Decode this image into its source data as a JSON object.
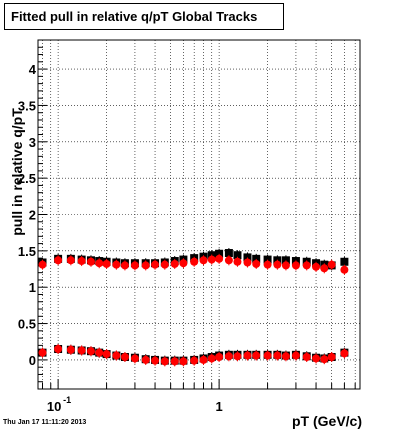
{
  "chart_data": {
    "type": "scatter",
    "title": "Fitted pull in relative q/pT  Global Tracks",
    "xlabel": "pT (GeV/c)",
    "ylabel": "pull in relative q/pT",
    "x_scale": "log",
    "xlim": [
      0.075,
      7.5
    ],
    "ylim": [
      -0.4,
      4.4
    ],
    "y_ticks": [
      "0",
      "0.5",
      "1",
      "1.5",
      "2",
      "2.5",
      "3",
      "3.5",
      "4"
    ],
    "x_tick_labels": [
      {
        "value": 0.1,
        "base": "10",
        "exp": "-1"
      },
      {
        "value": 1,
        "base": "1",
        "exp": ""
      }
    ],
    "grid": true,
    "series": [
      {
        "color": "#000000",
        "marker": "square",
        "x": [
          0.08,
          0.1,
          0.12,
          0.14,
          0.16,
          0.18,
          0.2,
          0.23,
          0.26,
          0.3,
          0.35,
          0.4,
          0.46,
          0.53,
          0.6,
          0.7,
          0.8,
          0.9,
          1.0,
          1.15,
          1.3,
          1.5,
          1.7,
          2.0,
          2.3,
          2.6,
          3.0,
          3.5,
          4.0,
          4.5,
          5.0,
          6.0
        ],
        "y": [
          1.34,
          1.39,
          1.39,
          1.38,
          1.37,
          1.36,
          1.35,
          1.34,
          1.33,
          1.33,
          1.33,
          1.33,
          1.34,
          1.36,
          1.38,
          1.4,
          1.42,
          1.44,
          1.46,
          1.47,
          1.44,
          1.41,
          1.39,
          1.38,
          1.37,
          1.37,
          1.36,
          1.35,
          1.33,
          1.31,
          1.3,
          1.35
        ]
      },
      {
        "color": "#ff0000",
        "marker": "circle",
        "x": [
          0.08,
          0.1,
          0.12,
          0.14,
          0.16,
          0.18,
          0.2,
          0.23,
          0.26,
          0.3,
          0.35,
          0.4,
          0.46,
          0.53,
          0.6,
          0.7,
          0.8,
          0.9,
          1.0,
          1.15,
          1.3,
          1.5,
          1.7,
          2.0,
          2.3,
          2.6,
          3.0,
          3.5,
          4.0,
          4.5,
          5.0,
          6.0
        ],
        "y": [
          1.31,
          1.37,
          1.37,
          1.36,
          1.35,
          1.33,
          1.32,
          1.31,
          1.3,
          1.3,
          1.3,
          1.31,
          1.31,
          1.32,
          1.33,
          1.35,
          1.37,
          1.38,
          1.39,
          1.37,
          1.35,
          1.34,
          1.32,
          1.31,
          1.31,
          1.3,
          1.3,
          1.3,
          1.28,
          1.26,
          1.31,
          1.24
        ]
      },
      {
        "color": "#000000",
        "marker": "square",
        "x": [
          0.08,
          0.1,
          0.12,
          0.14,
          0.16,
          0.18,
          0.2,
          0.23,
          0.26,
          0.3,
          0.35,
          0.4,
          0.46,
          0.53,
          0.6,
          0.7,
          0.8,
          0.9,
          1.0,
          1.15,
          1.3,
          1.5,
          1.7,
          2.0,
          2.3,
          2.6,
          3.0,
          3.5,
          4.0,
          4.5,
          5.0,
          6.0
        ],
        "y": [
          0.1,
          0.15,
          0.14,
          0.13,
          0.12,
          0.1,
          0.08,
          0.06,
          0.04,
          0.03,
          0.01,
          0.0,
          -0.01,
          -0.01,
          -0.01,
          0.0,
          0.02,
          0.04,
          0.06,
          0.07,
          0.07,
          0.07,
          0.07,
          0.07,
          0.07,
          0.06,
          0.07,
          0.05,
          0.03,
          0.02,
          0.04,
          0.1
        ]
      },
      {
        "color": "#ff0000",
        "marker": "circle",
        "x": [
          0.08,
          0.1,
          0.12,
          0.14,
          0.16,
          0.18,
          0.2,
          0.23,
          0.26,
          0.3,
          0.35,
          0.4,
          0.46,
          0.53,
          0.6,
          0.7,
          0.8,
          0.9,
          1.0,
          1.15,
          1.3,
          1.5,
          1.7,
          2.0,
          2.3,
          2.6,
          3.0,
          3.5,
          4.0,
          4.5,
          5.0,
          6.0
        ],
        "y": [
          0.1,
          0.15,
          0.14,
          0.13,
          0.12,
          0.1,
          0.08,
          0.06,
          0.04,
          0.02,
          0.0,
          -0.01,
          -0.02,
          -0.02,
          -0.02,
          -0.01,
          0.0,
          0.02,
          0.04,
          0.05,
          0.05,
          0.06,
          0.06,
          0.06,
          0.06,
          0.05,
          0.06,
          0.04,
          0.02,
          0.01,
          0.04,
          0.09
        ]
      }
    ]
  },
  "timestamp": "Thu Jan 17 11:11:20 2013"
}
